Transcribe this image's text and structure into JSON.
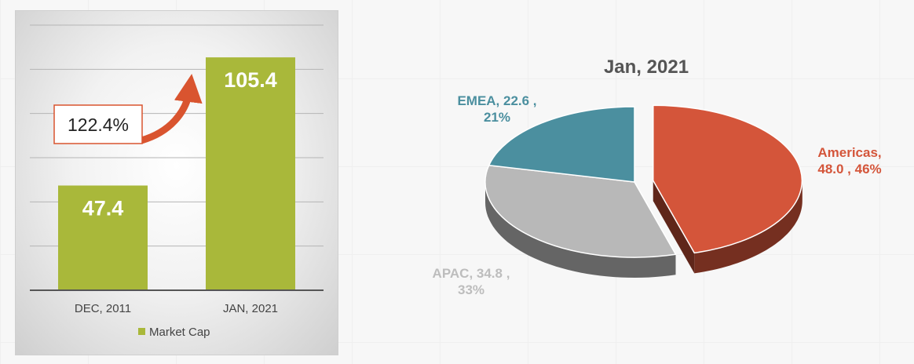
{
  "chart_data": [
    {
      "type": "bar",
      "categories": [
        "DEC, 2011",
        "JAN, 2021"
      ],
      "series": [
        {
          "name": "Market Cap",
          "values": [
            47.4,
            105.4
          ]
        }
      ],
      "value_labels": [
        "47.4",
        "105.4"
      ],
      "annotation": "122.4%",
      "legend": "bottom",
      "grid": true,
      "ylim": [
        0,
        120
      ],
      "colors": {
        "bar": "#a9b83a",
        "arrow": "#d9542f",
        "annotation_border": "#d9542f"
      }
    },
    {
      "type": "pie",
      "title": "Jan, 2021",
      "slices": [
        {
          "name": "Americas",
          "value": 48.0,
          "percent": 46,
          "color": "#d4553a",
          "label_lines": [
            "Americas,",
            "48.0 , 46%"
          ],
          "exploded": true
        },
        {
          "name": "APAC",
          "value": 34.8,
          "percent": 33,
          "color": "#b8b8b8",
          "label_lines": [
            "APAC, 34.8 ,",
            "33%"
          ],
          "exploded": false
        },
        {
          "name": "EMEA",
          "value": 22.6,
          "percent": 21,
          "color": "#4b8f9f",
          "label_lines": [
            "EMEA, 22.6 ,",
            "21%"
          ],
          "exploded": false
        }
      ]
    }
  ]
}
